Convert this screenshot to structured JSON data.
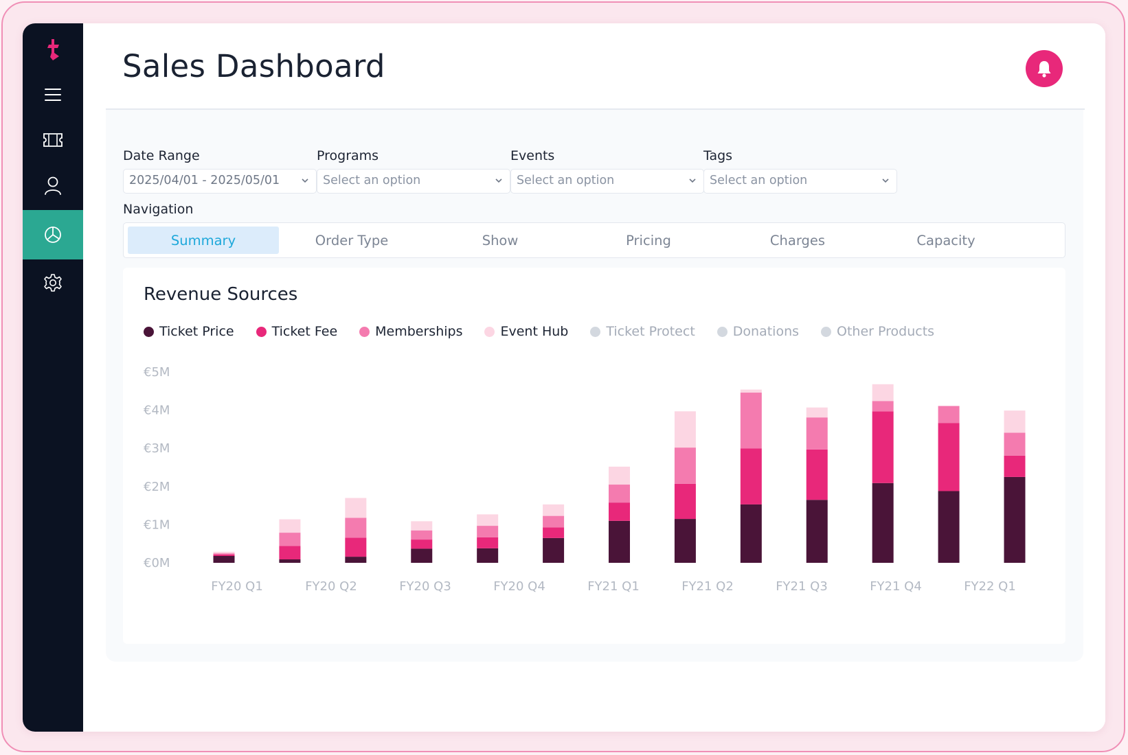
{
  "app": {
    "title": "Sales Dashboard",
    "brand_color": "#e8287a",
    "accent_color": "#2ba892"
  },
  "sidebar": {
    "logo": "brand-logo",
    "items": [
      {
        "name": "menu",
        "icon": "hamburger-icon",
        "active": false
      },
      {
        "name": "tickets",
        "icon": "ticket-icon",
        "active": false
      },
      {
        "name": "users",
        "icon": "user-icon",
        "active": false
      },
      {
        "name": "reports",
        "icon": "pie-chart-icon",
        "active": true
      },
      {
        "name": "settings",
        "icon": "gear-icon",
        "active": false
      }
    ]
  },
  "header": {
    "notification_icon": "bell-icon"
  },
  "filters": {
    "date_range": {
      "label": "Date Range",
      "value": "2025/04/01 - 2025/05/01"
    },
    "programs": {
      "label": "Programs",
      "placeholder": "Select an option"
    },
    "events": {
      "label": "Events",
      "placeholder": "Select an option"
    },
    "tags": {
      "label": "Tags",
      "placeholder": "Select an option"
    }
  },
  "navigation": {
    "label": "Navigation",
    "tabs": [
      {
        "label": "Summary",
        "active": true
      },
      {
        "label": "Order Type",
        "active": false
      },
      {
        "label": "Show",
        "active": false
      },
      {
        "label": "Pricing",
        "active": false
      },
      {
        "label": "Charges",
        "active": false
      },
      {
        "label": "Capacity",
        "active": false
      }
    ]
  },
  "revenue": {
    "title": "Revenue Sources",
    "legend": [
      {
        "label": "Ticket Price",
        "color": "#4a1438",
        "enabled": true
      },
      {
        "label": "Ticket Fee",
        "color": "#e8287a",
        "enabled": true
      },
      {
        "label": "Memberships",
        "color": "#f47baf",
        "enabled": true
      },
      {
        "label": "Event Hub",
        "color": "#fcd6e3",
        "enabled": true
      },
      {
        "label": "Ticket Protect",
        "color": "#d3d8df",
        "enabled": false
      },
      {
        "label": "Donations",
        "color": "#d3d8df",
        "enabled": false
      },
      {
        "label": "Other Products",
        "color": "#d3d8df",
        "enabled": false
      }
    ]
  },
  "chart_data": {
    "type": "bar",
    "stacked": true,
    "title": "Revenue Sources",
    "xlabel": "",
    "ylabel": "",
    "ylim": [
      0,
      5
    ],
    "yticks": [
      "€0M",
      "€1M",
      "€2M",
      "€3M",
      "€4M",
      "€5M"
    ],
    "x_tick_labels": [
      "FY20 Q1",
      "FY20 Q2",
      "FY20 Q3",
      "FY20 Q4",
      "FY21 Q1",
      "FY21 Q2",
      "FY21 Q3",
      "FY21 Q4",
      "FY22 Q1"
    ],
    "categories": [
      "FY20 Q1",
      "",
      "FY20 Q2",
      "",
      "FY20 Q3",
      "",
      "FY20 Q4",
      "",
      "FY21 Q1",
      "",
      "FY21 Q2",
      "",
      "FY21 Q3"
    ],
    "series": [
      {
        "name": "Ticket Price",
        "color": "#4a1438",
        "values": [
          0.18,
          0.09,
          0.16,
          0.37,
          0.38,
          0.65,
          1.1,
          1.15,
          1.53,
          1.65,
          2.09,
          1.88,
          2.25
        ]
      },
      {
        "name": "Ticket Fee",
        "color": "#e8287a",
        "values": [
          0.04,
          0.35,
          0.5,
          0.24,
          0.29,
          0.28,
          0.48,
          0.92,
          1.47,
          1.32,
          1.88,
          1.78,
          0.56
        ]
      },
      {
        "name": "Memberships",
        "color": "#f47baf",
        "values": [
          0.03,
          0.35,
          0.52,
          0.24,
          0.3,
          0.3,
          0.47,
          0.95,
          1.46,
          0.84,
          0.27,
          0.45,
          0.6
        ]
      },
      {
        "name": "Event Hub",
        "color": "#fcd6e3",
        "values": [
          0.04,
          0.35,
          0.52,
          0.24,
          0.3,
          0.3,
          0.47,
          0.95,
          0.08,
          0.26,
          0.44,
          0,
          0.58
        ]
      }
    ],
    "grid": false,
    "legend_position": "top-left"
  }
}
